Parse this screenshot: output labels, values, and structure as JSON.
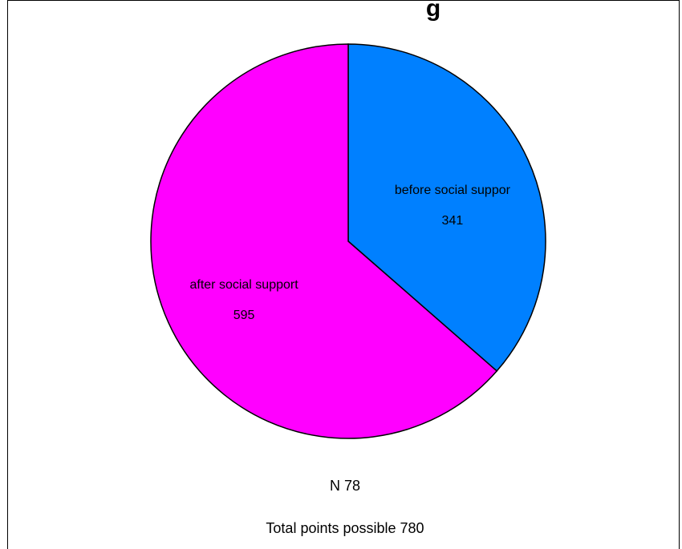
{
  "chart_data": {
    "type": "pie",
    "title": "g",
    "slices": [
      {
        "label": "before social suppor",
        "value": 341,
        "color": "#0080ff"
      },
      {
        "label": "after social support",
        "value": 595,
        "color": "#ff00ff"
      }
    ],
    "notes": [
      "N 78",
      "Total points possible 780"
    ]
  }
}
